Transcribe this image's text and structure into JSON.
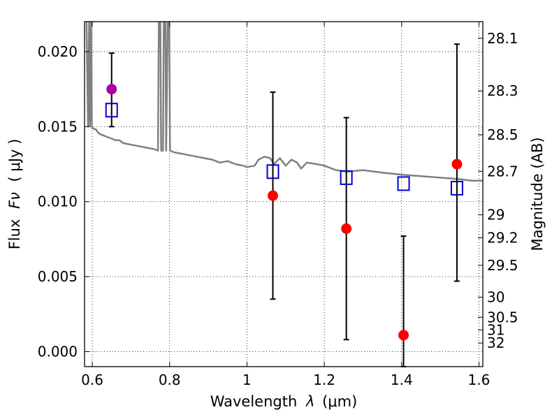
{
  "chart_data": {
    "type": "scatter",
    "title": "",
    "xlabel_prefix": "Wavelength",
    "xlabel_symbol": "λ",
    "xlabel_unit": "(μm)",
    "ylabel_prefix": "Flux",
    "ylabel_symbol": "Fν",
    "ylabel_unit": "( μJy )",
    "y2label": "Magnitude (AB)",
    "xlim": [
      0.58,
      1.61
    ],
    "ylim": [
      -0.001,
      0.022
    ],
    "grid": true,
    "legend": "none",
    "x_ticks": [
      {
        "value": 0.6,
        "label": "0.6"
      },
      {
        "value": 0.8,
        "label": "0.8"
      },
      {
        "value": 1.0,
        "label": "1"
      },
      {
        "value": 1.2,
        "label": "1.2"
      },
      {
        "value": 1.4,
        "label": "1.4"
      },
      {
        "value": 1.6,
        "label": "1.6"
      }
    ],
    "y_ticks": [
      {
        "value": 0.0,
        "label": "0.000"
      },
      {
        "value": 0.005,
        "label": "0.005"
      },
      {
        "value": 0.01,
        "label": "0.010"
      },
      {
        "value": 0.015,
        "label": "0.015"
      },
      {
        "value": 0.02,
        "label": "0.020"
      }
    ],
    "mag_ticks": [
      {
        "value": 28.1,
        "label": "28.1"
      },
      {
        "value": 28.3,
        "label": "28.3"
      },
      {
        "value": 28.5,
        "label": "28.5"
      },
      {
        "value": 28.7,
        "label": "28.7"
      },
      {
        "value": 29,
        "label": "29"
      },
      {
        "value": 29.2,
        "label": "29.2"
      },
      {
        "value": 29.5,
        "label": "29.5"
      },
      {
        "value": 30,
        "label": "30"
      },
      {
        "value": 30.5,
        "label": "30.5"
      },
      {
        "value": 31,
        "label": "31"
      },
      {
        "value": 32,
        "label": "32"
      }
    ],
    "series": [
      {
        "kind": "spectrum",
        "color": "#808080",
        "points": [
          [
            0.585,
            0.022
          ],
          [
            0.589,
            0.015
          ],
          [
            0.592,
            0.022
          ],
          [
            0.594,
            0.015
          ],
          [
            0.597,
            0.022
          ],
          [
            0.599,
            0.015
          ],
          [
            0.6,
            0.0149
          ],
          [
            0.61,
            0.0148
          ],
          [
            0.615,
            0.0146
          ],
          [
            0.62,
            0.0145
          ],
          [
            0.63,
            0.0144
          ],
          [
            0.64,
            0.0143
          ],
          [
            0.65,
            0.0142
          ],
          [
            0.66,
            0.0141
          ],
          [
            0.67,
            0.0141
          ],
          [
            0.68,
            0.0139
          ],
          [
            0.7,
            0.0138
          ],
          [
            0.72,
            0.0137
          ],
          [
            0.74,
            0.0136
          ],
          [
            0.76,
            0.0135
          ],
          [
            0.77,
            0.0134
          ],
          [
            0.772,
            0.022
          ],
          [
            0.776,
            0.022
          ],
          [
            0.778,
            0.0134
          ],
          [
            0.783,
            0.0134
          ],
          [
            0.785,
            0.022
          ],
          [
            0.789,
            0.022
          ],
          [
            0.791,
            0.0134
          ],
          [
            0.795,
            0.022
          ],
          [
            0.799,
            0.022
          ],
          [
            0.801,
            0.0134
          ],
          [
            0.81,
            0.0133
          ],
          [
            0.83,
            0.0132
          ],
          [
            0.85,
            0.0131
          ],
          [
            0.87,
            0.013
          ],
          [
            0.89,
            0.0129
          ],
          [
            0.91,
            0.0128
          ],
          [
            0.93,
            0.0126
          ],
          [
            0.95,
            0.0127
          ],
          [
            0.97,
            0.0125
          ],
          [
            0.99,
            0.0124
          ],
          [
            1.0,
            0.0123
          ],
          [
            1.02,
            0.0124
          ],
          [
            1.03,
            0.0128
          ],
          [
            1.045,
            0.013
          ],
          [
            1.06,
            0.0129
          ],
          [
            1.07,
            0.0125
          ],
          [
            1.085,
            0.0129
          ],
          [
            1.1,
            0.0124
          ],
          [
            1.115,
            0.0128
          ],
          [
            1.13,
            0.0126
          ],
          [
            1.14,
            0.0122
          ],
          [
            1.155,
            0.0126
          ],
          [
            1.18,
            0.0125
          ],
          [
            1.2,
            0.0124
          ],
          [
            1.23,
            0.0121
          ],
          [
            1.26,
            0.012
          ],
          [
            1.3,
            0.0121
          ],
          [
            1.33,
            0.012
          ],
          [
            1.36,
            0.0119
          ],
          [
            1.4,
            0.0118
          ],
          [
            1.45,
            0.0117
          ],
          [
            1.5,
            0.0116
          ],
          [
            1.55,
            0.0115
          ],
          [
            1.58,
            0.0114
          ],
          [
            1.61,
            0.0114
          ]
        ]
      },
      {
        "kind": "model-photometry",
        "marker": "open-square",
        "color": "#0000cc",
        "points": [
          [
            0.65,
            0.0161
          ],
          [
            1.067,
            0.012
          ],
          [
            1.257,
            0.0116
          ],
          [
            1.405,
            0.0112
          ],
          [
            1.543,
            0.0109
          ]
        ]
      },
      {
        "kind": "observed",
        "marker": "filled-circle",
        "color": "#ff0000",
        "highlight_color": "#aa00aa",
        "points": [
          {
            "x": 0.65,
            "y": 0.0175,
            "lo": 0.015,
            "hi": 0.0199,
            "highlight": true
          },
          {
            "x": 1.067,
            "y": 0.0104,
            "lo": 0.0035,
            "hi": 0.0173
          },
          {
            "x": 1.257,
            "y": 0.0082,
            "lo": 0.0008,
            "hi": 0.0156
          },
          {
            "x": 1.405,
            "y": 0.0011,
            "lo": -0.001,
            "hi": 0.0077
          },
          {
            "x": 1.543,
            "y": 0.0125,
            "lo": 0.0047,
            "hi": 0.0205
          }
        ]
      }
    ]
  }
}
